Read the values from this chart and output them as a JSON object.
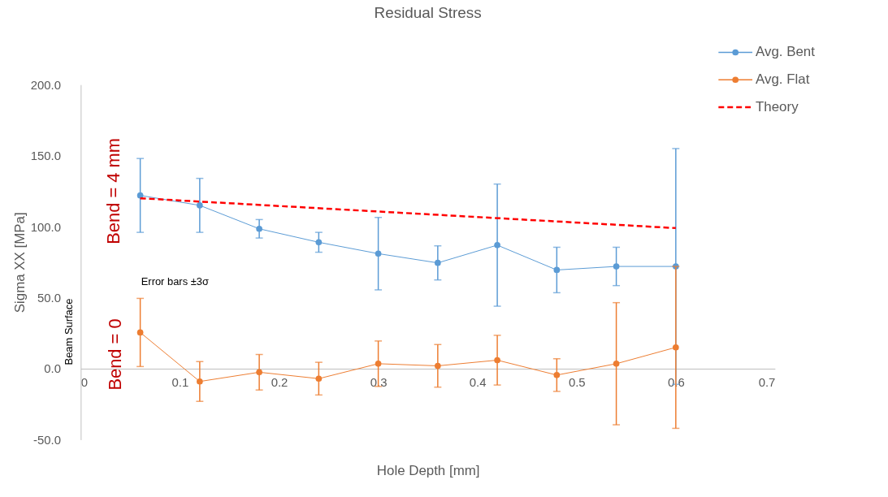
{
  "chart_data": {
    "type": "line",
    "title": "Residual Stress",
    "xlabel": "Hole Depth [mm]",
    "ylabel": "Sigma XX [MPa]",
    "xlim": [
      0,
      0.7
    ],
    "xticks": [
      0,
      0.1,
      0.2,
      0.3,
      0.4,
      0.5,
      0.6,
      0.7
    ],
    "ylim": [
      -50,
      200
    ],
    "yticks": [
      {
        "value": -50,
        "label": "-50.0"
      },
      {
        "value": 0,
        "label": "0.0"
      },
      {
        "value": 50,
        "label": "50.0"
      },
      {
        "value": 100,
        "label": "100.0"
      },
      {
        "value": 150,
        "label": "150.0"
      },
      {
        "value": 200,
        "label": "200.0"
      }
    ],
    "grid": false,
    "legend": "top right",
    "marker": "circle",
    "series": [
      {
        "name": "Avg. Bent",
        "color": "#5b9bd5",
        "x": [
          0.06,
          0.12,
          0.18,
          0.24,
          0.3,
          0.36,
          0.42,
          0.48,
          0.54,
          0.6
        ],
        "values": [
          122,
          115,
          98.5,
          89,
          81,
          74.5,
          87,
          69.5,
          72,
          72
        ],
        "errors": [
          26,
          19,
          6.5,
          7,
          25.5,
          12,
          43,
          16,
          13.5,
          83
        ]
      },
      {
        "name": "Avg. Flat",
        "color": "#ed7d31",
        "x": [
          0.06,
          0.12,
          0.18,
          0.24,
          0.3,
          0.36,
          0.42,
          0.48,
          0.54,
          0.6
        ],
        "values": [
          25.5,
          -9,
          -2.5,
          -7,
          3.5,
          2,
          6,
          -4.5,
          3.5,
          15
        ],
        "errors": [
          24,
          14,
          12.5,
          11.5,
          16,
          15,
          17.5,
          11.5,
          43,
          57
        ]
      },
      {
        "name": "Theory",
        "color": "#ff0000",
        "type": "line",
        "marker": "none",
        "line_style": "dashed",
        "x": [
          0.06,
          0.6
        ],
        "values": [
          120,
          99
        ]
      }
    ],
    "annotations": [
      "Bend = 4 mm",
      "Bend = 0",
      "Error bars ±3σ",
      "Beam Surface"
    ]
  }
}
